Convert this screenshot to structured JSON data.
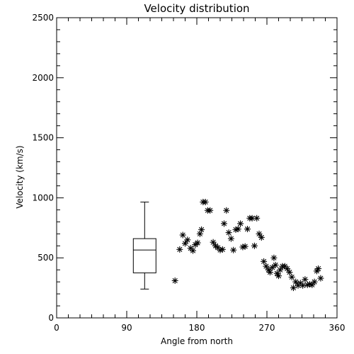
{
  "chart_data": {
    "type": "scatter",
    "title": "Velocity distribution",
    "xlabel": "Angle from north",
    "ylabel": "Velocity (km/s)",
    "xlim": [
      0,
      360
    ],
    "ylim": [
      0,
      2500
    ],
    "x_major_ticks": [
      0,
      90,
      180,
      270,
      360
    ],
    "y_major_ticks": [
      0,
      500,
      1000,
      1500,
      2000,
      2500
    ],
    "x_tick_labels": [
      "0",
      "90",
      "180",
      "270",
      "360"
    ],
    "y_tick_labels": [
      "0",
      "500",
      "1000",
      "1500",
      "2000",
      "2500"
    ],
    "x_minor_step": 15,
    "y_minor_step": 100,
    "grid": false,
    "legend": "none",
    "boxplot": {
      "x": 113,
      "whisker_low": 240,
      "q1": 375,
      "median": 565,
      "q3": 660,
      "whisker_high": 965
    },
    "points": [
      [
        152,
        310
      ],
      [
        158,
        570
      ],
      [
        162,
        690
      ],
      [
        165,
        620
      ],
      [
        168,
        650
      ],
      [
        172,
        580
      ],
      [
        175,
        560
      ],
      [
        178,
        610
      ],
      [
        181,
        625
      ],
      [
        184,
        700
      ],
      [
        186,
        735
      ],
      [
        188,
        965
      ],
      [
        191,
        965
      ],
      [
        194,
        895
      ],
      [
        197,
        895
      ],
      [
        201,
        630
      ],
      [
        204,
        600
      ],
      [
        207,
        585
      ],
      [
        210,
        565
      ],
      [
        213,
        570
      ],
      [
        215,
        785
      ],
      [
        218,
        895
      ],
      [
        221,
        710
      ],
      [
        224,
        660
      ],
      [
        227,
        565
      ],
      [
        230,
        735
      ],
      [
        233,
        740
      ],
      [
        236,
        785
      ],
      [
        239,
        590
      ],
      [
        242,
        595
      ],
      [
        245,
        740
      ],
      [
        248,
        830
      ],
      [
        251,
        830
      ],
      [
        254,
        600
      ],
      [
        257,
        830
      ],
      [
        260,
        700
      ],
      [
        263,
        670
      ],
      [
        266,
        470
      ],
      [
        269,
        430
      ],
      [
        272,
        400
      ],
      [
        274,
        380
      ],
      [
        277,
        420
      ],
      [
        279,
        500
      ],
      [
        281,
        440
      ],
      [
        283,
        370
      ],
      [
        285,
        350
      ],
      [
        287,
        400
      ],
      [
        290,
        430
      ],
      [
        293,
        430
      ],
      [
        296,
        410
      ],
      [
        299,
        380
      ],
      [
        302,
        340
      ],
      [
        304,
        250
      ],
      [
        307,
        300
      ],
      [
        310,
        270
      ],
      [
        313,
        290
      ],
      [
        316,
        270
      ],
      [
        319,
        320
      ],
      [
        322,
        275
      ],
      [
        325,
        280
      ],
      [
        328,
        275
      ],
      [
        331,
        300
      ],
      [
        334,
        390
      ],
      [
        336,
        410
      ],
      [
        339,
        330
      ]
    ]
  }
}
